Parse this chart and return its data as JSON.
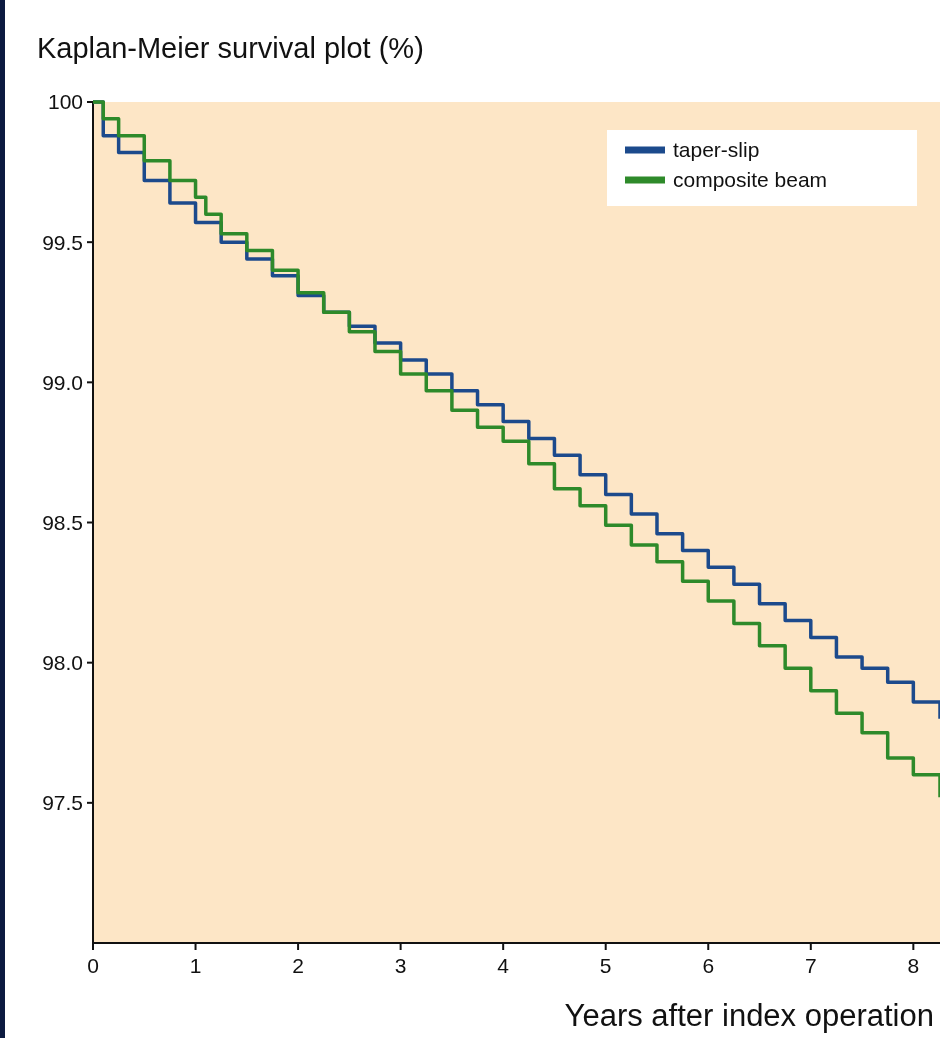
{
  "chart_data": {
    "type": "step",
    "title": "Kaplan-Meier survival plot (%)",
    "xlabel": "Years after index operation",
    "xlim": [
      0,
      8.26
    ],
    "xticks": [
      0,
      1,
      2,
      3,
      4,
      5,
      6,
      7,
      8
    ],
    "ylim": [
      97.0,
      100
    ],
    "yticks": [
      97.5,
      {
        "value": 98,
        "label": "98.0"
      },
      98.5,
      {
        "value": 99,
        "label": "99.0"
      },
      99.5,
      100
    ],
    "grid": false,
    "legend": "top right",
    "marker": "none",
    "line_style": "solid",
    "series": [
      {
        "name": "taper-slip",
        "color": "#1c4a8c",
        "x": [
          0,
          0.1,
          0.25,
          0.5,
          0.75,
          1,
          1.25,
          1.5,
          1.75,
          2,
          2.25,
          2.5,
          2.75,
          3,
          3.25,
          3.5,
          3.75,
          4,
          4.25,
          4.5,
          4.75,
          5,
          5.25,
          5.5,
          5.75,
          6,
          6.25,
          6.5,
          6.75,
          7,
          7.25,
          7.5,
          7.75,
          8,
          8.26
        ],
        "values": [
          100,
          99.88,
          99.82,
          99.72,
          99.64,
          99.57,
          99.5,
          99.44,
          99.38,
          99.31,
          99.25,
          99.2,
          99.14,
          99.08,
          99.03,
          98.97,
          98.92,
          98.86,
          98.8,
          98.74,
          98.67,
          98.6,
          98.53,
          98.46,
          98.4,
          98.34,
          98.28,
          98.21,
          98.15,
          98.09,
          98.02,
          97.98,
          97.93,
          97.86,
          97.8
        ]
      },
      {
        "name": "composite beam",
        "color": "#2e8a2a",
        "x": [
          0,
          0.1,
          0.25,
          0.5,
          0.75,
          1,
          1.1,
          1.25,
          1.5,
          1.75,
          2,
          2.25,
          2.5,
          2.75,
          3,
          3.25,
          3.5,
          3.75,
          4,
          4.25,
          4.5,
          4.75,
          5,
          5.25,
          5.5,
          5.75,
          6,
          6.25,
          6.5,
          6.75,
          7,
          7.25,
          7.5,
          7.75,
          8,
          8.26
        ],
        "values": [
          100,
          99.94,
          99.88,
          99.79,
          99.72,
          99.66,
          99.6,
          99.53,
          99.47,
          99.4,
          99.32,
          99.25,
          99.18,
          99.11,
          99.03,
          98.97,
          98.9,
          98.84,
          98.79,
          98.71,
          98.62,
          98.56,
          98.49,
          98.42,
          98.36,
          98.29,
          98.22,
          98.14,
          98.06,
          97.98,
          97.9,
          97.82,
          97.75,
          97.66,
          97.6,
          97.52
        ]
      }
    ]
  }
}
